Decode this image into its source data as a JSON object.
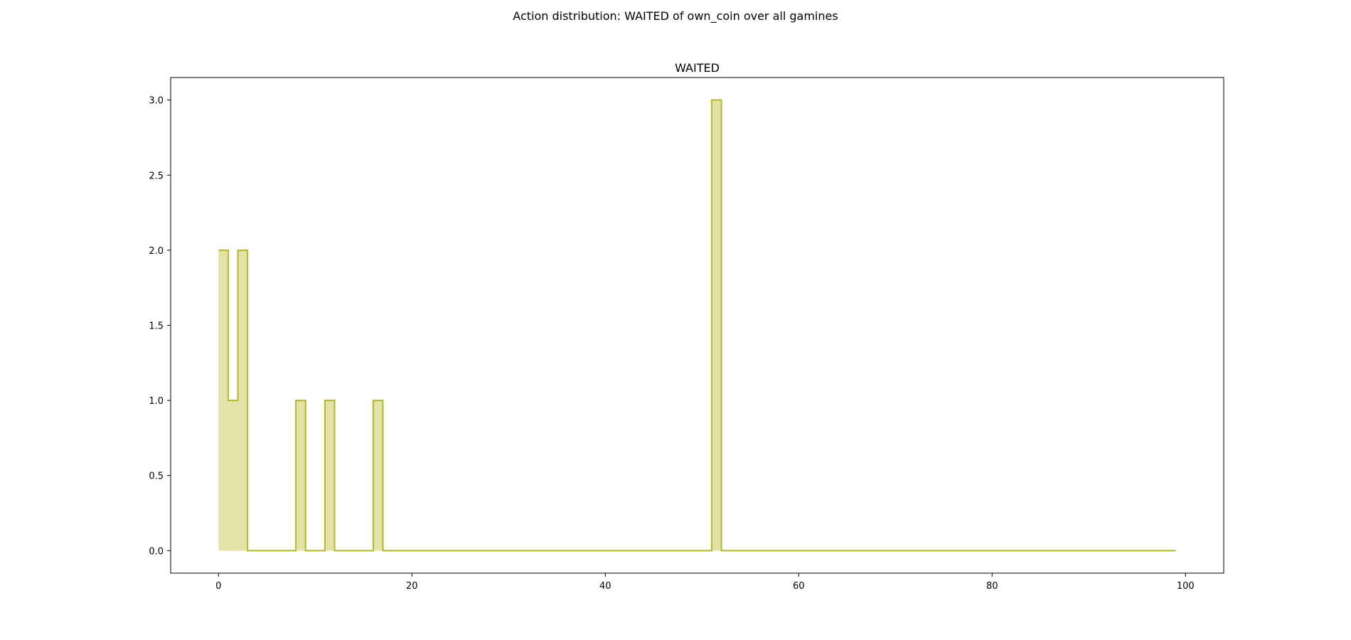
{
  "figure": {
    "suptitle": "Action distribution: WAITED of own_coin over all gamines"
  },
  "chart_data": {
    "type": "area",
    "title": "WAITED",
    "xlabel": "",
    "ylabel": "",
    "xlim": [
      -4.95,
      103.95
    ],
    "ylim": [
      -0.15,
      3.15
    ],
    "xticks": [
      0,
      20,
      40,
      60,
      80,
      100
    ],
    "yticks": [
      0.0,
      0.5,
      1.0,
      1.5,
      2.0,
      2.5,
      3.0
    ],
    "grid": false,
    "step": "post",
    "colors": {
      "line": "#b5b825",
      "fill": "#e3e3a7"
    },
    "series": [
      {
        "x": [
          0,
          1,
          2,
          3,
          4,
          5,
          6,
          7,
          8,
          9,
          10,
          11,
          12,
          13,
          14,
          15,
          16,
          17,
          18,
          19,
          20,
          21,
          22,
          23,
          24,
          25,
          26,
          27,
          28,
          29,
          30,
          31,
          32,
          33,
          34,
          35,
          36,
          37,
          38,
          39,
          40,
          41,
          42,
          43,
          44,
          45,
          46,
          47,
          48,
          49,
          50,
          51,
          52,
          53,
          54,
          55,
          56,
          57,
          58,
          59,
          60,
          61,
          62,
          63,
          64,
          65,
          66,
          67,
          68,
          69,
          70,
          71,
          72,
          73,
          74,
          75,
          76,
          77,
          78,
          79,
          80,
          81,
          82,
          83,
          84,
          85,
          86,
          87,
          88,
          89,
          90,
          91,
          92,
          93,
          94,
          95,
          96,
          97,
          98,
          99
        ],
        "values": [
          2,
          1,
          2,
          0,
          0,
          0,
          0,
          0,
          1,
          0,
          0,
          1,
          0,
          0,
          0,
          0,
          1,
          0,
          0,
          0,
          0,
          0,
          0,
          0,
          0,
          0,
          0,
          0,
          0,
          0,
          0,
          0,
          0,
          0,
          0,
          0,
          0,
          0,
          0,
          0,
          0,
          0,
          0,
          0,
          0,
          0,
          0,
          0,
          0,
          0,
          0,
          3,
          0,
          0,
          0,
          0,
          0,
          0,
          0,
          0,
          0,
          0,
          0,
          0,
          0,
          0,
          0,
          0,
          0,
          0,
          0,
          0,
          0,
          0,
          0,
          0,
          0,
          0,
          0,
          0,
          0,
          0,
          0,
          0,
          0,
          0,
          0,
          0,
          0,
          0,
          0,
          0,
          0,
          0,
          0,
          0,
          0,
          0,
          0,
          0
        ]
      }
    ]
  }
}
